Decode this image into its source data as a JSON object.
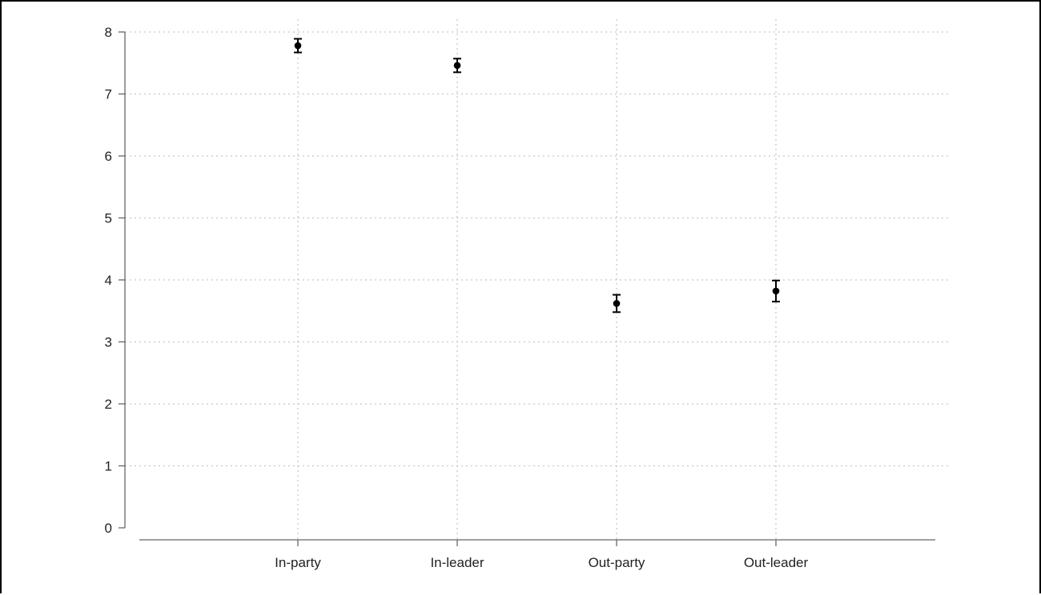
{
  "chart_data": {
    "type": "scatter",
    "title": "",
    "xlabel": "",
    "ylabel": "",
    "categories": [
      "In-party",
      "In-leader",
      "Out-party",
      "Out-leader"
    ],
    "series": [
      {
        "values": [
          7.78,
          7.46,
          3.62,
          3.82
        ],
        "ci_low": [
          7.67,
          7.35,
          3.48,
          3.65
        ],
        "ci_high": [
          7.89,
          7.57,
          3.76,
          3.99
        ]
      }
    ],
    "ylim": [
      0,
      8
    ],
    "yticks": [
      "0",
      "1",
      "2",
      "3",
      "4",
      "5",
      "6",
      "7",
      "8"
    ],
    "grid": true,
    "colors": {
      "marker": "#000000",
      "axis": "#666666",
      "grid": "#c8c8c8"
    }
  }
}
